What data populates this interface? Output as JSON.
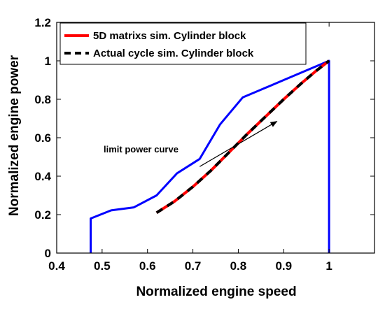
{
  "chart_data": {
    "type": "line",
    "xlabel": "Normalized engine speed",
    "ylabel": "Normalized engine power",
    "xlim": [
      0.4,
      1.1
    ],
    "ylim": [
      0,
      1.2
    ],
    "x_ticks": [
      "0.4",
      "0.5",
      "0.6",
      "0.7",
      "0.8",
      "0.9",
      "1"
    ],
    "y_ticks": [
      "0",
      "0.2",
      "0.4",
      "0.6",
      "0.8",
      "1",
      "1.2"
    ],
    "grid": false,
    "legend_position": "top-left",
    "series": [
      {
        "name": "",
        "color": "#0000ff",
        "dash": "solid",
        "x": [
          0.475,
          0.475,
          0.52,
          0.57,
          0.62,
          0.665,
          0.715,
          0.76,
          0.81,
          0.85,
          0.9,
          0.95,
          1.0,
          1.0
        ],
        "y": [
          0,
          0.18,
          0.222,
          0.238,
          0.3,
          0.415,
          0.49,
          0.67,
          0.81,
          0.85,
          0.9,
          0.95,
          1.0,
          0
        ]
      },
      {
        "name": "5D matrixs sim. Cylinder block",
        "color": "#ff0000",
        "dash": "solid",
        "x": [
          0.62,
          0.66,
          0.7,
          0.74,
          0.78,
          0.82,
          0.86,
          0.9,
          0.94,
          0.97,
          1.0
        ],
        "y": [
          0.21,
          0.27,
          0.345,
          0.43,
          0.525,
          0.62,
          0.71,
          0.8,
          0.885,
          0.945,
          1.0
        ]
      },
      {
        "name": "Actual cycle sim. Cylinder block",
        "color": "#000000",
        "dash": "dashed",
        "x": [
          0.62,
          0.66,
          0.7,
          0.74,
          0.78,
          0.82,
          0.86,
          0.9,
          0.94,
          0.97,
          1.0
        ],
        "y": [
          0.21,
          0.27,
          0.345,
          0.43,
          0.525,
          0.62,
          0.71,
          0.8,
          0.885,
          0.945,
          1.0
        ]
      }
    ],
    "annotations": [
      {
        "text": "limit power curve"
      }
    ],
    "arrow": {
      "from": [
        0.715,
        0.45
      ],
      "to": [
        0.885,
        0.685
      ]
    }
  }
}
